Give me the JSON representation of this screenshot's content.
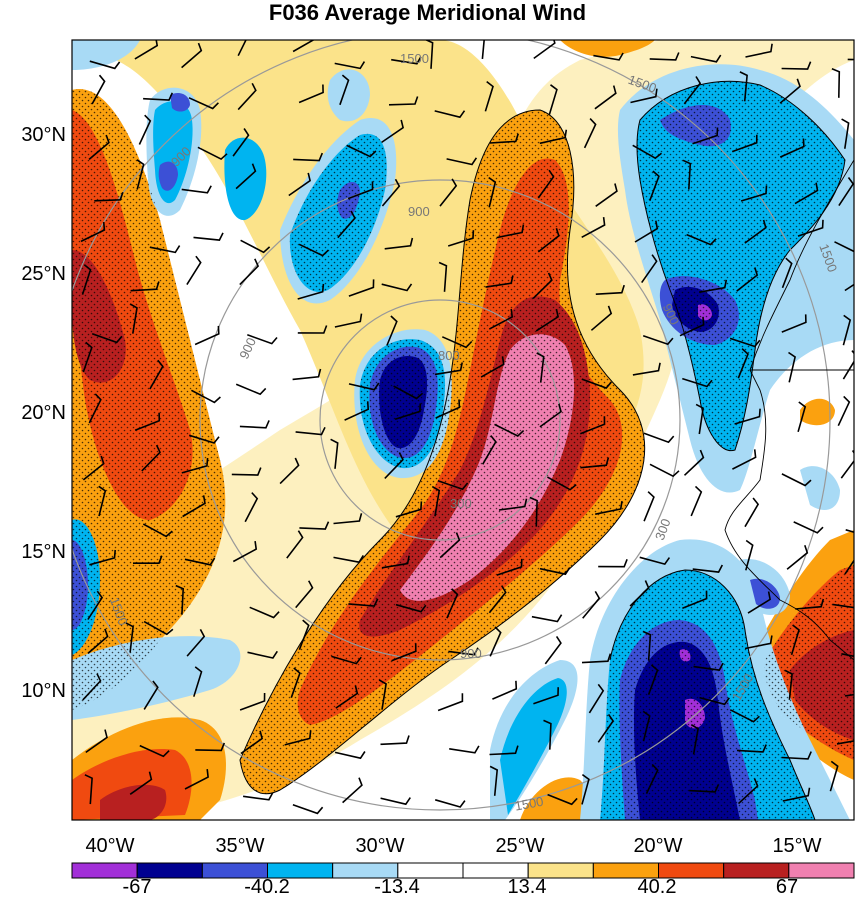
{
  "title": "F036 Average Meridional Wind",
  "map": {
    "lat_labels": [
      "30°N",
      "25°N",
      "20°N",
      "15°N",
      "10°N"
    ],
    "lon_labels": [
      "40°W",
      "35°W",
      "30°W",
      "25°W",
      "20°W",
      "15°W"
    ],
    "range_ring_labels": [
      "1500",
      "1500",
      "1500",
      "1500",
      "1500",
      "1500",
      "900",
      "900",
      "900",
      "900",
      "900",
      "300",
      "300",
      "800"
    ]
  },
  "colorbar": {
    "labels": [
      "-67",
      "-40.2",
      "-13.4",
      "13.4",
      "40.2",
      "67"
    ],
    "colors": [
      "#a22fd8",
      "#000090",
      "#3c50d6",
      "#00b4f0",
      "#a8daf5",
      "#ffffff",
      "#ffffff",
      "#fbe38a",
      "#fba10f",
      "#f04a10",
      "#b82020",
      "#f080b0"
    ]
  }
}
